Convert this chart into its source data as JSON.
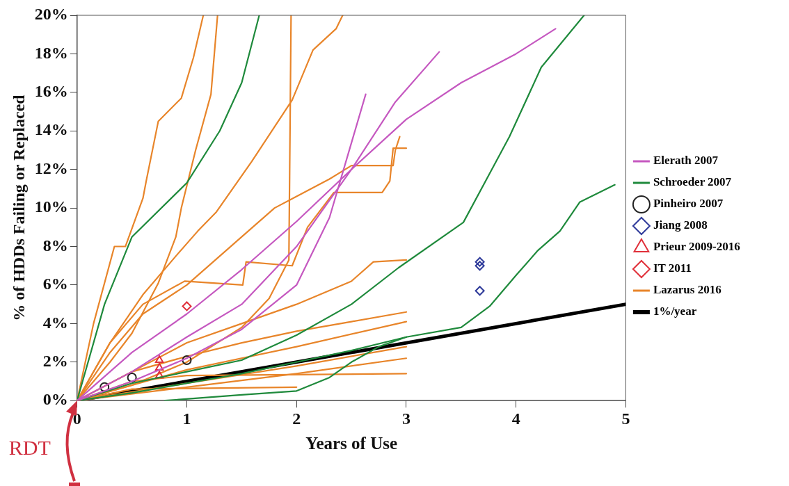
{
  "chart_data": {
    "type": "line",
    "xlabel": "Years of Use",
    "ylabel": "% of HDDs Failing or Replaced",
    "xlim": [
      0,
      5
    ],
    "xticks": [
      0,
      1,
      2,
      3,
      4,
      5
    ],
    "ylim": [
      0,
      20
    ],
    "yticks": [
      {
        "value": 0,
        "label": "0%"
      },
      {
        "value": 2,
        "label": "2%"
      },
      {
        "value": 4,
        "label": "4%"
      },
      {
        "value": 6,
        "label": "6%"
      },
      {
        "value": 8,
        "label": "8%"
      },
      {
        "value": 10,
        "label": "10%"
      },
      {
        "value": 12,
        "label": "12%"
      },
      {
        "value": 14,
        "label": "14%"
      },
      {
        "value": 16,
        "label": "16%"
      },
      {
        "value": 18,
        "label": "18%"
      },
      {
        "value": 20,
        "label": "20%"
      }
    ],
    "grid": false,
    "legend": "right",
    "line_style": "solid",
    "annotations": [
      {
        "text": "RDT",
        "x": 0,
        "y": 0
      }
    ],
    "series": [
      {
        "name": "Elerath 2007",
        "type": "line",
        "marker": "none",
        "color": "#c558c0",
        "x": [
          0,
          0.5,
          1,
          1.5,
          2,
          2.5,
          3,
          3.5,
          4,
          4.36
        ],
        "values": [
          0,
          2.5,
          4.5,
          6.8,
          9.3,
          12,
          14.6,
          16.5,
          18,
          19.3
        ]
      },
      {
        "type": "line",
        "marker": "none",
        "color": "#c558c0",
        "x": [
          0,
          0.5,
          1,
          1.5,
          2,
          2.5,
          2.9,
          3.3
        ],
        "values": [
          0,
          1.5,
          3.3,
          5,
          8,
          12,
          15.5,
          18.1
        ]
      },
      {
        "type": "line",
        "marker": "none",
        "color": "#c558c0",
        "x": [
          0,
          0.5,
          1,
          1.5,
          2,
          2.3,
          2.63
        ],
        "values": [
          0,
          1,
          2.2,
          3.7,
          6,
          9.5,
          15.9
        ]
      },
      {
        "name": "Schroeder 2007",
        "type": "line",
        "marker": "none",
        "color": "#1f8a3c",
        "x": [
          0,
          0.25,
          0.5,
          1,
          1.3,
          1.5,
          1.66
        ],
        "values": [
          0,
          5,
          8.5,
          11.3,
          14,
          16.5,
          20
        ]
      },
      {
        "type": "line",
        "marker": "none",
        "color": "#1f8a3c",
        "x": [
          0,
          0.5,
          1,
          1.5,
          2,
          2.5,
          2.93,
          3.52,
          3.94,
          4.23,
          4.62
        ],
        "values": [
          0,
          0.9,
          1.5,
          2.1,
          3.4,
          5,
          6.9,
          9.25,
          13.7,
          17.3,
          20
        ]
      },
      {
        "type": "line",
        "marker": "none",
        "color": "#1f8a3c",
        "x": [
          0,
          0.5,
          1,
          1.5,
          2,
          2.5,
          3,
          3.5,
          3.76,
          4,
          4.2,
          4.4,
          4.58,
          4.9
        ],
        "values": [
          0,
          0.4,
          0.9,
          1.4,
          2,
          2.6,
          3.3,
          3.8,
          4.9,
          6.5,
          7.8,
          8.8,
          10.3,
          11.2
        ]
      },
      {
        "type": "line",
        "marker": "none",
        "color": "#1f8a3c",
        "x": [
          0.8,
          1.5,
          2,
          2.3,
          2.5,
          2.75,
          3
        ],
        "values": [
          0,
          0.3,
          0.5,
          1.2,
          2,
          2.8,
          3.3
        ]
      },
      {
        "name": "Pinheiro 2007",
        "type": "scatter",
        "marker": "circle",
        "color": "#222222",
        "x": [
          0.25,
          0.5,
          1
        ],
        "values": [
          0.7,
          1.2,
          2.1
        ]
      },
      {
        "name": "Jiang 2008",
        "type": "scatter",
        "marker": "diamond",
        "color": "#2f3b9a",
        "x": [
          3.67,
          3.67,
          3.67
        ],
        "values": [
          7.2,
          7,
          5.7
        ]
      },
      {
        "name": "Prieur 2009-2016",
        "type": "scatter",
        "marker": "triangle",
        "color": "#e0303a",
        "x": [
          0.75,
          0.75,
          0.75
        ],
        "values": [
          1.3,
          1.7,
          2.1
        ]
      },
      {
        "name": "IT 2011",
        "type": "scatter",
        "marker": "diamond",
        "color": "#e0303a",
        "x": [
          1
        ],
        "values": [
          4.9
        ]
      },
      {
        "name": "Lazarus 2016",
        "type": "line",
        "marker": "none",
        "color": "#e8852a",
        "x": [
          0,
          0.15,
          0.34,
          0.44,
          0.6,
          0.63,
          0.74,
          0.95,
          1.06,
          1.15
        ],
        "values": [
          0,
          4,
          8,
          8,
          10.5,
          11.4,
          14.5,
          15.7,
          17.8,
          20
        ]
      },
      {
        "type": "line",
        "marker": "none",
        "color": "#e8852a",
        "x": [
          0,
          0.3,
          0.5,
          0.74,
          0.9,
          0.95,
          1.08,
          1.22,
          1.28
        ],
        "values": [
          0,
          2,
          3.5,
          6.1,
          8.5,
          10,
          13,
          15.9,
          20
        ]
      },
      {
        "type": "line",
        "marker": "none",
        "color": "#e8852a",
        "x": [
          0,
          0.5,
          1,
          1.5,
          1.75,
          1.93,
          1.95
        ],
        "values": [
          0,
          0.8,
          2,
          3.8,
          5.3,
          7.3,
          20
        ]
      },
      {
        "type": "line",
        "marker": "none",
        "color": "#e8852a",
        "x": [
          0,
          0.3,
          0.6,
          0.9,
          1.1,
          1.27,
          1.59,
          1.96,
          2.15,
          2.36,
          2.42
        ],
        "values": [
          0,
          3,
          5.5,
          7.5,
          8.8,
          9.8,
          12.4,
          15.6,
          18.2,
          19.3,
          20
        ]
      },
      {
        "type": "line",
        "marker": "none",
        "color": "#e8852a",
        "x": [
          0,
          0.3,
          0.6,
          1,
          1.5,
          1.8,
          2,
          2.3,
          2.5,
          2.88,
          2.9,
          2.94
        ],
        "values": [
          0,
          2.5,
          4.5,
          6,
          8.5,
          10,
          10.6,
          11.5,
          12.2,
          12.2,
          13,
          13.7
        ]
      },
      {
        "type": "line",
        "marker": "none",
        "color": "#e8852a",
        "x": [
          0,
          0.3,
          0.6,
          0.98,
          1.51,
          1.54,
          1.96,
          2.1,
          2.34,
          2.78,
          2.85,
          2.88,
          3
        ],
        "values": [
          0,
          3,
          5,
          6.2,
          6,
          7.2,
          7,
          9,
          10.8,
          10.8,
          11.4,
          13.1,
          13.1
        ]
      },
      {
        "type": "line",
        "marker": "none",
        "color": "#e8852a",
        "x": [
          0,
          0.5,
          1,
          1.5,
          2,
          2.5,
          2.7,
          3
        ],
        "values": [
          0,
          1.5,
          3,
          4,
          5,
          6.2,
          7.2,
          7.3
        ]
      },
      {
        "type": "line",
        "marker": "none",
        "color": "#e8852a",
        "x": [
          0,
          0.5,
          1,
          1.5,
          2,
          2.5,
          3
        ],
        "values": [
          0,
          1.5,
          2.3,
          3,
          3.6,
          4.1,
          4.6
        ]
      },
      {
        "type": "line",
        "marker": "none",
        "color": "#e8852a",
        "x": [
          0,
          1,
          2,
          3
        ],
        "values": [
          0,
          1.6,
          2.8,
          4.1
        ]
      },
      {
        "type": "line",
        "marker": "none",
        "color": "#e8852a",
        "x": [
          0,
          1,
          2,
          3
        ],
        "values": [
          0,
          0.9,
          1.8,
          2.8
        ]
      },
      {
        "type": "line",
        "marker": "none",
        "color": "#e8852a",
        "x": [
          0,
          1,
          2,
          3
        ],
        "values": [
          0,
          0.7,
          1.4,
          2.2
        ]
      },
      {
        "type": "line",
        "marker": "none",
        "color": "#e8852a",
        "x": [
          0,
          0.5,
          1,
          3
        ],
        "values": [
          0,
          1,
          1.3,
          1.4
        ]
      },
      {
        "type": "line",
        "marker": "none",
        "color": "#e8852a",
        "x": [
          0,
          0.5,
          2
        ],
        "values": [
          0,
          0.6,
          0.7
        ]
      },
      {
        "name": "1%/year",
        "type": "line",
        "marker": "none",
        "color": "#000000",
        "x": [
          0,
          5
        ],
        "values": [
          0,
          5
        ]
      }
    ]
  }
}
